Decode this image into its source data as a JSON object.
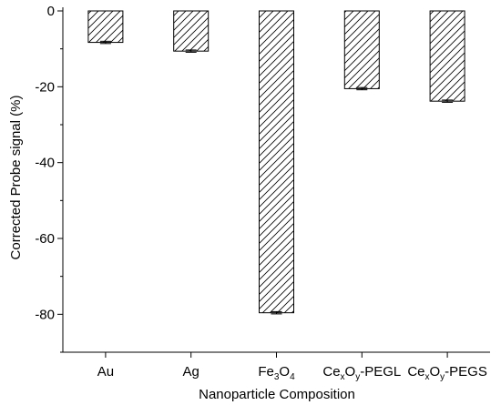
{
  "chart_data": {
    "type": "bar",
    "categories": [
      "Au",
      "Ag",
      "Fe3O4",
      "CexOy-PEGL",
      "CexOy-PEGS"
    ],
    "category_labels": [
      [
        {
          "t": "Au"
        }
      ],
      [
        {
          "t": "Ag"
        }
      ],
      [
        {
          "t": "Fe"
        },
        {
          "t": "3",
          "sub": true
        },
        {
          "t": "O"
        },
        {
          "t": "4",
          "sub": true
        }
      ],
      [
        {
          "t": "Ce"
        },
        {
          "t": "x",
          "sub": true
        },
        {
          "t": "O"
        },
        {
          "t": "y",
          "sub": true
        },
        {
          "t": "-PEGL"
        }
      ],
      [
        {
          "t": "Ce"
        },
        {
          "t": "x",
          "sub": true
        },
        {
          "t": "O"
        },
        {
          "t": "y",
          "sub": true
        },
        {
          "t": "-PEGS"
        }
      ]
    ],
    "values": [
      -8.3,
      -10.6,
      -79.6,
      -20.5,
      -23.8
    ],
    "errors": [
      0.3,
      0.3,
      0.3,
      0.3,
      0.3
    ],
    "xlabel": "Nanoparticle Composition",
    "ylabel": "Corrected Probe signal (%)",
    "ylim": [
      -90,
      0
    ],
    "yticks": [
      0,
      -20,
      -40,
      -60,
      -80
    ],
    "bar_fill": "hatched",
    "grid": false
  }
}
